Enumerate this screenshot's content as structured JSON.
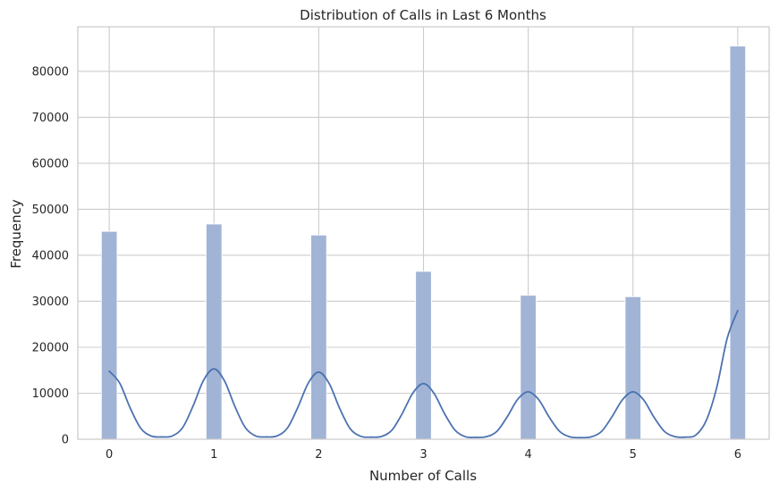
{
  "chart_data": {
    "type": "bar",
    "title": "Distribution of Calls in Last 6 Months",
    "xlabel": "Number of Calls",
    "ylabel": "Frequency",
    "categories": [
      "0",
      "1",
      "2",
      "3",
      "4",
      "5",
      "6"
    ],
    "x": [
      0,
      1,
      2,
      3,
      4,
      5,
      6
    ],
    "values": [
      45200,
      46800,
      44400,
      36500,
      31300,
      31000,
      85500
    ],
    "kde_curve": {
      "x": [
        0,
        0.1,
        0.2,
        0.3,
        0.4,
        0.5,
        0.6,
        0.7,
        0.8,
        0.9,
        1,
        1.1,
        1.2,
        1.3,
        1.4,
        1.5,
        1.6,
        1.7,
        1.8,
        1.9,
        2,
        2.1,
        2.2,
        2.3,
        2.4,
        2.5,
        2.6,
        2.7,
        2.8,
        2.9,
        3,
        3.1,
        3.2,
        3.3,
        3.4,
        3.5,
        3.6,
        3.7,
        3.8,
        3.9,
        4,
        4.1,
        4.2,
        4.3,
        4.4,
        4.5,
        4.6,
        4.7,
        4.8,
        4.9,
        5,
        5.1,
        5.2,
        5.3,
        5.4,
        5.5,
        5.6,
        5.7,
        5.8,
        5.9,
        6
      ],
      "y": [
        14800,
        12200,
        6800,
        2400,
        700,
        500,
        700,
        2500,
        7200,
        12800,
        15300,
        12700,
        7100,
        2500,
        700,
        500,
        700,
        2400,
        6900,
        12200,
        14600,
        12100,
        6700,
        2300,
        650,
        450,
        600,
        2000,
        5700,
        10100,
        12100,
        10000,
        5600,
        2000,
        550,
        400,
        550,
        1700,
        4900,
        8700,
        10300,
        8600,
        4800,
        1700,
        500,
        350,
        500,
        1700,
        4900,
        8600,
        10300,
        8600,
        4800,
        1700,
        550,
        450,
        900,
        4100,
        11300,
        22000,
        28000
      ]
    },
    "xlim": [
      -0.3,
      6.3
    ],
    "ylim": [
      0,
      89700
    ],
    "y_ticks": [
      0,
      10000,
      20000,
      30000,
      40000,
      50000,
      60000,
      70000,
      80000
    ],
    "grid": true,
    "colors": {
      "bar_fill": "#a1b4d6",
      "bar_edge": "#ffffff",
      "kde_line": "#4c72b0",
      "grid": "#cccccc",
      "spine": "#cccccc",
      "text": "#262626"
    }
  }
}
